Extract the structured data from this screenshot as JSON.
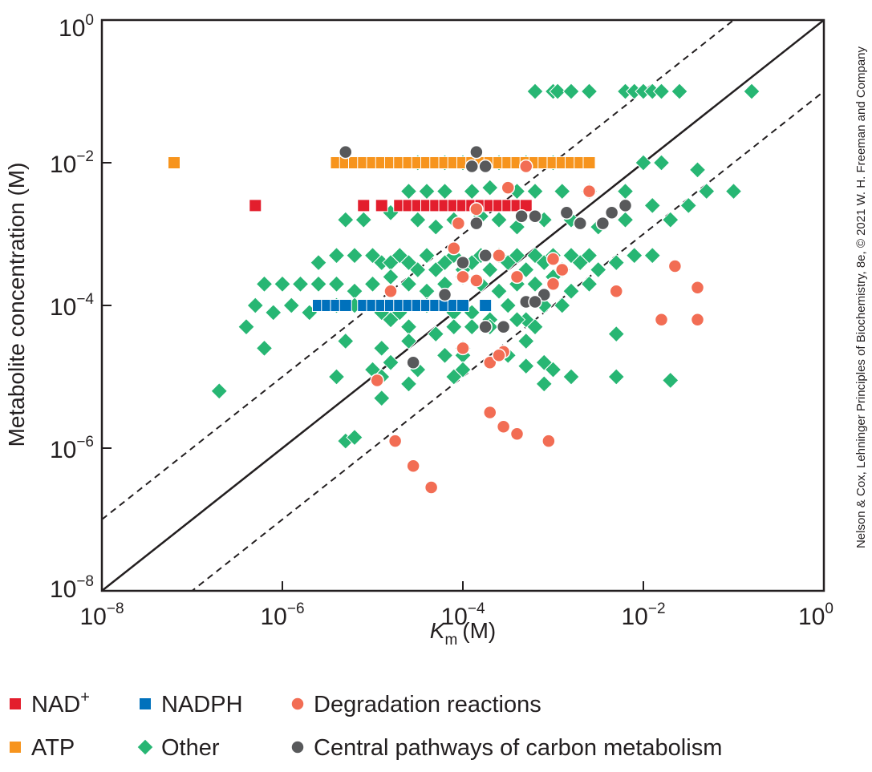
{
  "chart_data": {
    "type": "scatter",
    "x_scale": "log",
    "y_scale": "log",
    "xlim_exp": [
      -8,
      0
    ],
    "ylim_exp": [
      -8,
      0
    ],
    "xlabel": {
      "main": "K",
      "sub": "m",
      "unit": "(M)"
    },
    "ylabel": "Metabolite concentration (M)",
    "x_ticks": [
      {
        "base": "10",
        "exp": "−8"
      },
      {
        "base": "10",
        "exp": "−6"
      },
      {
        "base": "10",
        "exp": "−4"
      },
      {
        "base": "10",
        "exp": "−2"
      },
      {
        "base": "10",
        "exp": "0"
      }
    ],
    "y_ticks": [
      {
        "base": "10",
        "exp": "−8"
      },
      {
        "base": "10",
        "exp": "−6"
      },
      {
        "base": "10",
        "exp": "−4"
      },
      {
        "base": "10",
        "exp": "−2"
      },
      {
        "base": "10",
        "exp": "0"
      }
    ],
    "reference_lines": [
      {
        "style": "solid",
        "ratio": 1
      },
      {
        "style": "dashed",
        "ratio": 10
      },
      {
        "style": "dashed",
        "ratio": 0.1
      }
    ],
    "series": [
      {
        "name": "NAD+",
        "label": "NAD",
        "label_sup": "+",
        "marker": "square",
        "color": "#e31e2d",
        "points": [
          [
            -6.3,
            -2.6
          ],
          [
            -5.1,
            -2.6
          ],
          [
            -4.9,
            -2.6
          ],
          [
            -4.7,
            -2.6
          ],
          [
            -4.6,
            -2.6
          ],
          [
            -4.5,
            -2.6
          ],
          [
            -4.4,
            -2.6
          ],
          [
            -4.3,
            -2.6
          ],
          [
            -4.2,
            -2.6
          ],
          [
            -4.1,
            -2.6
          ],
          [
            -4.0,
            -2.6
          ],
          [
            -3.9,
            -2.6
          ],
          [
            -3.8,
            -2.6
          ],
          [
            -3.7,
            -2.6
          ],
          [
            -3.6,
            -2.6
          ],
          [
            -3.5,
            -2.6
          ],
          [
            -3.4,
            -2.6
          ],
          [
            -3.3,
            -2.6
          ]
        ]
      },
      {
        "name": "ATP",
        "label": "ATP",
        "label_sup": "",
        "marker": "square",
        "color": "#f7941d",
        "points": [
          [
            -7.2,
            -2.0
          ],
          [
            -5.4,
            -2.0
          ],
          [
            -5.3,
            -2.0
          ],
          [
            -5.2,
            -2.0
          ],
          [
            -5.1,
            -2.0
          ],
          [
            -5.0,
            -2.0
          ],
          [
            -4.9,
            -2.0
          ],
          [
            -4.8,
            -2.0
          ],
          [
            -4.7,
            -2.0
          ],
          [
            -4.6,
            -2.0
          ],
          [
            -4.5,
            -2.0
          ],
          [
            -4.4,
            -2.0
          ],
          [
            -4.3,
            -2.0
          ],
          [
            -4.2,
            -2.0
          ],
          [
            -4.1,
            -2.0
          ],
          [
            -4.0,
            -2.0
          ],
          [
            -3.9,
            -2.0
          ],
          [
            -3.8,
            -2.0
          ],
          [
            -3.7,
            -2.0
          ],
          [
            -3.6,
            -2.0
          ],
          [
            -3.5,
            -2.0
          ],
          [
            -3.4,
            -2.0
          ],
          [
            -3.3,
            -2.0
          ],
          [
            -3.2,
            -2.0
          ],
          [
            -3.1,
            -2.0
          ],
          [
            -3.0,
            -2.0
          ],
          [
            -2.9,
            -2.0
          ],
          [
            -2.8,
            -2.0
          ],
          [
            -2.7,
            -2.0
          ],
          [
            -2.6,
            -2.0
          ]
        ]
      },
      {
        "name": "NADPH",
        "label": "NADPH",
        "label_sup": "",
        "marker": "square",
        "color": "#0071bc",
        "points": [
          [
            -5.6,
            -4.0
          ],
          [
            -5.5,
            -4.0
          ],
          [
            -5.4,
            -4.0
          ],
          [
            -5.3,
            -4.0
          ],
          [
            -5.1,
            -4.0
          ],
          [
            -5.0,
            -4.0
          ],
          [
            -4.9,
            -4.0
          ],
          [
            -4.8,
            -4.0
          ],
          [
            -4.7,
            -4.0
          ],
          [
            -4.6,
            -4.0
          ],
          [
            -4.5,
            -4.0
          ],
          [
            -4.4,
            -4.0
          ],
          [
            -4.3,
            -4.0
          ],
          [
            -4.2,
            -4.0
          ],
          [
            -4.1,
            -4.0
          ],
          [
            -4.0,
            -4.0
          ],
          [
            -3.75,
            -4.0
          ]
        ]
      },
      {
        "name": "Other",
        "label": "Other",
        "label_sup": "",
        "marker": "diamond",
        "color": "#27b673",
        "points": [
          [
            -3.2,
            -1.0
          ],
          [
            -3.0,
            -1.0
          ],
          [
            -2.95,
            -1.0
          ],
          [
            -2.8,
            -1.0
          ],
          [
            -2.6,
            -1.0
          ],
          [
            -2.2,
            -1.0
          ],
          [
            -2.1,
            -1.0
          ],
          [
            -2.0,
            -1.0
          ],
          [
            -1.9,
            -1.0
          ],
          [
            -1.8,
            -1.0
          ],
          [
            -1.6,
            -1.0
          ],
          [
            -0.8,
            -1.0
          ],
          [
            -4.5,
            -2.0
          ],
          [
            -4.2,
            -2.0
          ],
          [
            -4.0,
            -2.0
          ],
          [
            -3.6,
            -2.0
          ],
          [
            -3.3,
            -2.0
          ],
          [
            -3.0,
            -2.0
          ],
          [
            -2.0,
            -2.0
          ],
          [
            -1.8,
            -2.0
          ],
          [
            -1.4,
            -2.1
          ],
          [
            -1.0,
            -2.4
          ],
          [
            -4.6,
            -2.4
          ],
          [
            -4.4,
            -2.4
          ],
          [
            -4.2,
            -2.4
          ],
          [
            -3.9,
            -2.4
          ],
          [
            -3.7,
            -2.35
          ],
          [
            -3.4,
            -2.4
          ],
          [
            -3.2,
            -2.4
          ],
          [
            -2.9,
            -2.4
          ],
          [
            -2.6,
            -2.4
          ],
          [
            -2.2,
            -2.4
          ],
          [
            -1.5,
            -2.6
          ],
          [
            -1.3,
            -2.4
          ],
          [
            -5.3,
            -2.8
          ],
          [
            -5.1,
            -2.8
          ],
          [
            -4.8,
            -2.7
          ],
          [
            -4.5,
            -2.8
          ],
          [
            -4.3,
            -2.9
          ],
          [
            -4.1,
            -2.8
          ],
          [
            -3.8,
            -2.75
          ],
          [
            -3.6,
            -2.8
          ],
          [
            -3.4,
            -2.9
          ],
          [
            -3.1,
            -2.8
          ],
          [
            -2.8,
            -2.8
          ],
          [
            -2.5,
            -2.9
          ],
          [
            -2.2,
            -2.8
          ],
          [
            -1.9,
            -2.6
          ],
          [
            -1.7,
            -2.8
          ],
          [
            -5.6,
            -3.4
          ],
          [
            -5.4,
            -3.3
          ],
          [
            -5.2,
            -3.3
          ],
          [
            -5.0,
            -3.3
          ],
          [
            -4.9,
            -3.4
          ],
          [
            -4.8,
            -3.4
          ],
          [
            -4.7,
            -3.3
          ],
          [
            -4.6,
            -3.4
          ],
          [
            -4.5,
            -3.5
          ],
          [
            -4.4,
            -3.3
          ],
          [
            -4.3,
            -3.5
          ],
          [
            -4.2,
            -3.4
          ],
          [
            -4.1,
            -3.3
          ],
          [
            -4.0,
            -3.5
          ],
          [
            -3.9,
            -3.4
          ],
          [
            -3.8,
            -3.3
          ],
          [
            -3.7,
            -3.5
          ],
          [
            -3.6,
            -3.3
          ],
          [
            -3.5,
            -3.4
          ],
          [
            -3.4,
            -3.3
          ],
          [
            -3.3,
            -3.5
          ],
          [
            -3.2,
            -3.3
          ],
          [
            -3.1,
            -3.4
          ],
          [
            -3.0,
            -3.3
          ],
          [
            -2.9,
            -3.5
          ],
          [
            -2.8,
            -3.3
          ],
          [
            -2.7,
            -3.4
          ],
          [
            -2.6,
            -3.3
          ],
          [
            -2.5,
            -3.5
          ],
          [
            -2.3,
            -3.4
          ],
          [
            -2.1,
            -3.3
          ],
          [
            -1.9,
            -3.3
          ],
          [
            -6.2,
            -3.7
          ],
          [
            -6.0,
            -3.7
          ],
          [
            -5.8,
            -3.7
          ],
          [
            -5.6,
            -3.7
          ],
          [
            -5.4,
            -3.7
          ],
          [
            -5.2,
            -3.8
          ],
          [
            -5.0,
            -3.7
          ],
          [
            -4.8,
            -3.6
          ],
          [
            -4.6,
            -3.7
          ],
          [
            -4.4,
            -3.8
          ],
          [
            -4.2,
            -3.7
          ],
          [
            -4.0,
            -3.6
          ],
          [
            -3.8,
            -3.7
          ],
          [
            -3.6,
            -3.8
          ],
          [
            -3.4,
            -3.7
          ],
          [
            -3.2,
            -3.7
          ],
          [
            -3.0,
            -3.6
          ],
          [
            -2.8,
            -3.8
          ],
          [
            -2.6,
            -3.7
          ],
          [
            -6.3,
            -4.0
          ],
          [
            -6.1,
            -4.1
          ],
          [
            -5.9,
            -4.0
          ],
          [
            -5.7,
            -4.1
          ],
          [
            -5.4,
            -4.0
          ],
          [
            -5.2,
            -4.0
          ],
          [
            -4.9,
            -4.1
          ],
          [
            -4.7,
            -4.1
          ],
          [
            -4.4,
            -4.0
          ],
          [
            -4.1,
            -4.1
          ],
          [
            -3.9,
            -4.1
          ],
          [
            -3.7,
            -4.2
          ],
          [
            -3.5,
            -4.0
          ],
          [
            -3.3,
            -4.2
          ],
          [
            -3.1,
            -4.0
          ],
          [
            -2.9,
            -4.0
          ],
          [
            -6.4,
            -4.3
          ],
          [
            -4.8,
            -4.2
          ],
          [
            -4.6,
            -4.3
          ],
          [
            -4.3,
            -4.4
          ],
          [
            -4.1,
            -4.3
          ],
          [
            -3.9,
            -4.3
          ],
          [
            -3.7,
            -4.3
          ],
          [
            -3.4,
            -4.2
          ],
          [
            -3.2,
            -4.3
          ],
          [
            -5.3,
            -4.5
          ],
          [
            -4.9,
            -4.6
          ],
          [
            -4.6,
            -4.5
          ],
          [
            -4.0,
            -4.6
          ],
          [
            -3.3,
            -4.5
          ],
          [
            -2.3,
            -4.4
          ],
          [
            -4.8,
            -4.8
          ],
          [
            -4.2,
            -4.7
          ],
          [
            -4.0,
            -4.7
          ],
          [
            -3.5,
            -4.7
          ],
          [
            -3.3,
            -4.85
          ],
          [
            -3.1,
            -4.8
          ],
          [
            -6.2,
            -4.6
          ],
          [
            -5.0,
            -4.9
          ],
          [
            -4.5,
            -4.9
          ],
          [
            -4.0,
            -4.9
          ],
          [
            -3.0,
            -4.9
          ],
          [
            -4.9,
            -5.0
          ],
          [
            -5.4,
            -5.0
          ],
          [
            -4.9,
            -5.0
          ],
          [
            -4.6,
            -5.1
          ],
          [
            -4.1,
            -5.0
          ],
          [
            -3.1,
            -5.1
          ],
          [
            -2.8,
            -5.0
          ],
          [
            -1.7,
            -5.05
          ],
          [
            -4.9,
            -5.3
          ],
          [
            -2.3,
            -5.0
          ],
          [
            -6.7,
            -5.2
          ],
          [
            -5.3,
            -5.9
          ],
          [
            -5.2,
            -5.85
          ]
        ]
      },
      {
        "name": "Degradation reactions",
        "label": "Degradation reactions",
        "label_sup": "",
        "marker": "circle",
        "color": "#f26d54",
        "points": [
          [
            -3.3,
            -2.05
          ],
          [
            -3.5,
            -2.35
          ],
          [
            -2.6,
            -2.4
          ],
          [
            -3.85,
            -2.65
          ],
          [
            -3.6,
            -3.3
          ],
          [
            -3.85,
            -3.65
          ],
          [
            -4.1,
            -3.2
          ],
          [
            -4.05,
            -2.85
          ],
          [
            -3.0,
            -3.35
          ],
          [
            -2.9,
            -3.5
          ],
          [
            -2.3,
            -3.8
          ],
          [
            -3.0,
            -3.7
          ],
          [
            -4.8,
            -3.8
          ],
          [
            -3.4,
            -3.6
          ],
          [
            -4.0,
            -3.6
          ],
          [
            -4.0,
            -4.6
          ],
          [
            -3.7,
            -4.8
          ],
          [
            -3.55,
            -4.65
          ],
          [
            -4.95,
            -5.05
          ],
          [
            -3.6,
            -4.7
          ],
          [
            -3.7,
            -5.5
          ],
          [
            -3.55,
            -5.7
          ],
          [
            -3.4,
            -5.8
          ],
          [
            -3.05,
            -5.9
          ],
          [
            -4.55,
            -6.25
          ],
          [
            -4.75,
            -5.9
          ],
          [
            -1.65,
            -3.45
          ],
          [
            -1.4,
            -3.75
          ],
          [
            -1.8,
            -4.2
          ],
          [
            -1.4,
            -4.2
          ],
          [
            -4.35,
            -6.55
          ]
        ]
      },
      {
        "name": "Central pathways of carbon metabolism",
        "label": "Central pathways of carbon metabolism",
        "label_sup": "",
        "marker": "circle",
        "color": "#58595b",
        "points": [
          [
            -5.3,
            -1.85
          ],
          [
            -3.85,
            -1.85
          ],
          [
            -3.9,
            -2.05
          ],
          [
            -3.75,
            -2.05
          ],
          [
            -3.35,
            -2.75
          ],
          [
            -3.2,
            -2.75
          ],
          [
            -2.85,
            -2.7
          ],
          [
            -2.7,
            -2.85
          ],
          [
            -2.45,
            -2.85
          ],
          [
            -2.35,
            -2.7
          ],
          [
            -2.2,
            -2.6
          ],
          [
            -3.85,
            -2.85
          ],
          [
            -4.0,
            -3.4
          ],
          [
            -3.75,
            -3.3
          ],
          [
            -4.2,
            -3.85
          ],
          [
            -3.1,
            -3.85
          ],
          [
            -3.3,
            -3.95
          ],
          [
            -3.2,
            -3.95
          ],
          [
            -3.75,
            -4.3
          ],
          [
            -3.55,
            -4.3
          ],
          [
            -4.55,
            -4.8
          ]
        ]
      }
    ]
  },
  "credit": "Nelson & Cox, Lehninger Principles of Biochemistry, 8e, © 2021 W. H. Freeman and Company"
}
